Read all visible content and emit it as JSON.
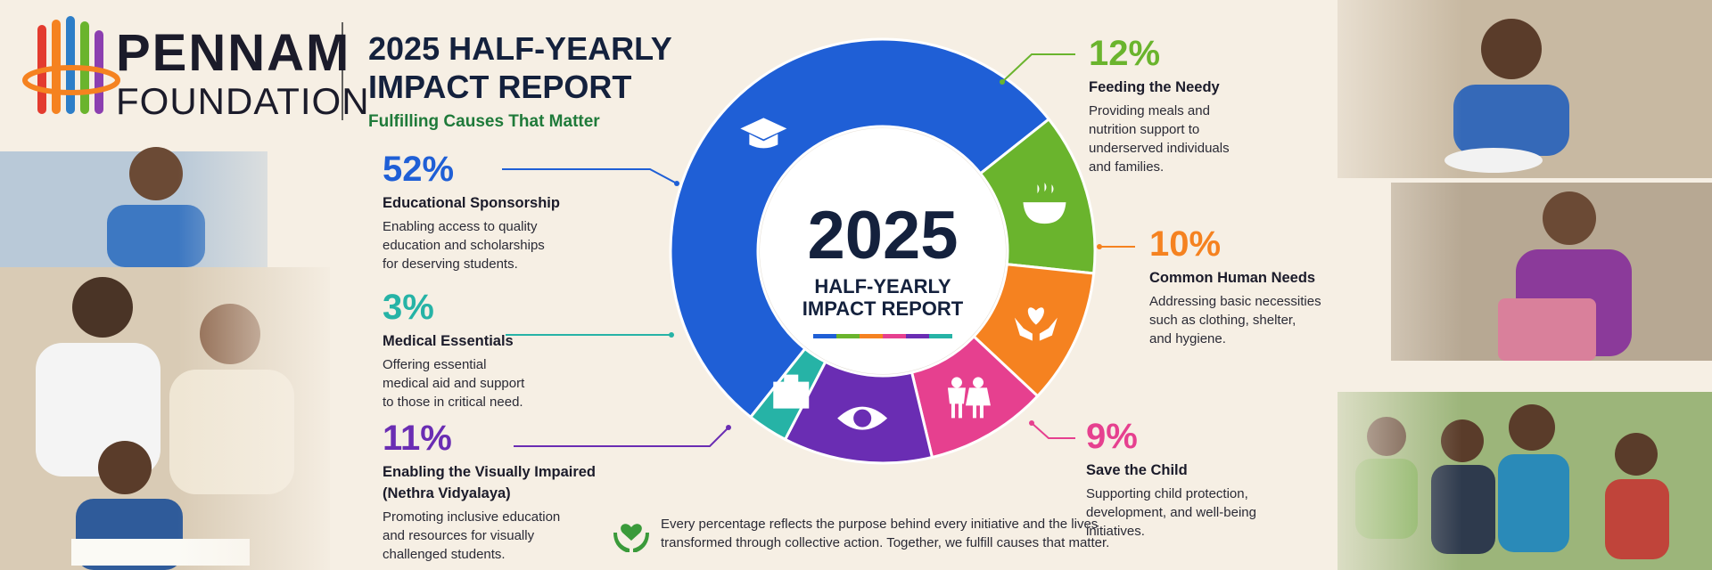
{
  "header": {
    "logo_line1": "PENNAM",
    "logo_line2": "FOUNDATION",
    "title_line1": "2025 HALF-YEARLY",
    "title_line2": "IMPACT REPORT",
    "subtitle": "Fulfilling Causes That Matter"
  },
  "chart_data": {
    "type": "donut",
    "center_year": "2025",
    "center_line1": "HALF-YEARLY",
    "center_line2": "IMPACT REPORT",
    "categories": [
      "Educational Sponsorship",
      "Feeding the Needy",
      "Common Human Needs",
      "Save the Child",
      "Enabling the Visually Impaired (Nethra Vidyalaya)",
      "Medical Essentials"
    ],
    "values": [
      52,
      12,
      10,
      9,
      11,
      3
    ],
    "value_labels": [
      "52%",
      "12%",
      "10%",
      "9%",
      "11%",
      "3%"
    ],
    "colors": [
      "#1f5fd6",
      "#6ab42d",
      "#f58220",
      "#e6408f",
      "#6a2db3",
      "#26b3a6"
    ],
    "descriptions": [
      [
        "Enabling access to quality",
        "education and scholarships",
        "for deserving students."
      ],
      [
        "Providing meals and",
        "nutrition support to",
        "underserved individuals",
        "and families."
      ],
      [
        "Addressing basic necessities",
        "such as clothing, shelter,",
        "and hygiene."
      ],
      [
        "Supporting child protection,",
        "development, and well-being",
        "initiatives."
      ],
      [
        "Promoting inclusive education",
        "and resources for visually",
        "challenged students."
      ],
      [
        "Offering essential",
        "medical aid and support",
        "to those in critical need."
      ]
    ]
  },
  "footer": {
    "line1": "Every percentage reflects the purpose behind every initiative and the lives",
    "line2": "transformed through collective action. Together, we fulfill causes that matter."
  }
}
